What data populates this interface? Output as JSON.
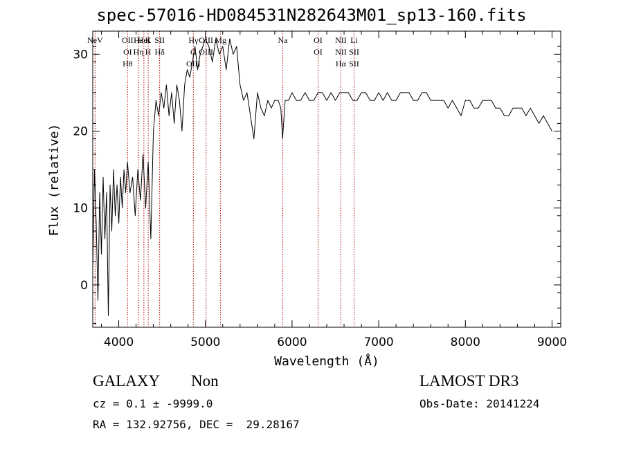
{
  "chart_data": {
    "type": "line",
    "title": "spec-57016-HD084531N282643M01_sp13-160.fits",
    "xlabel": "Wavelength (Å)",
    "ylabel": "Flux (relative)",
    "xlim": [
      3700,
      9100
    ],
    "ylim": [
      -5.5,
      33
    ],
    "xticks": [
      4000,
      5000,
      6000,
      7000,
      8000,
      9000
    ],
    "yticks": [
      0,
      10,
      20,
      30
    ],
    "grid": false,
    "series": [
      {
        "color": "#000000",
        "x": [
          3700,
          3720,
          3740,
          3760,
          3780,
          3800,
          3820,
          3840,
          3860,
          3880,
          3900,
          3920,
          3940,
          3960,
          3980,
          4000,
          4020,
          4040,
          4060,
          4080,
          4100,
          4130,
          4160,
          4190,
          4220,
          4250,
          4280,
          4310,
          4340,
          4370,
          4400,
          4430,
          4460,
          4490,
          4520,
          4550,
          4580,
          4610,
          4640,
          4670,
          4700,
          4730,
          4760,
          4790,
          4820,
          4850,
          4880,
          4910,
          4940,
          4970,
          5000,
          5040,
          5080,
          5120,
          5160,
          5200,
          5240,
          5280,
          5320,
          5360,
          5400,
          5440,
          5480,
          5520,
          5560,
          5600,
          5640,
          5680,
          5720,
          5760,
          5800,
          5840,
          5870,
          5890,
          5920,
          5960,
          6000,
          6050,
          6100,
          6150,
          6200,
          6250,
          6300,
          6350,
          6400,
          6450,
          6500,
          6550,
          6600,
          6650,
          6700,
          6750,
          6800,
          6850,
          6900,
          6950,
          7000,
          7050,
          7100,
          7150,
          7200,
          7250,
          7300,
          7350,
          7400,
          7450,
          7500,
          7550,
          7600,
          7650,
          7700,
          7750,
          7800,
          7850,
          7900,
          7950,
          8000,
          8050,
          8100,
          8150,
          8200,
          8250,
          8300,
          8350,
          8400,
          8450,
          8500,
          8550,
          8600,
          8650,
          8700,
          8750,
          8800,
          8850,
          8900,
          8950,
          9000
        ],
        "y": [
          2,
          15,
          8,
          -2,
          12,
          4,
          14,
          6,
          12,
          -4,
          13,
          7,
          15,
          9,
          13,
          8,
          14,
          10,
          15,
          12,
          16,
          12,
          14,
          9,
          15,
          11,
          17,
          10,
          16,
          6,
          20,
          24,
          22,
          25,
          23,
          26,
          22,
          25,
          21,
          26,
          24,
          20,
          26,
          28,
          27,
          29,
          31,
          28,
          30,
          31,
          32,
          31,
          29,
          32,
          30,
          31,
          28,
          32,
          30,
          31,
          26,
          24,
          25,
          22,
          19,
          25,
          23,
          22,
          24,
          23,
          24,
          24,
          23,
          19,
          24,
          24,
          25,
          24,
          24,
          25,
          24,
          24,
          25,
          25,
          24,
          25,
          24,
          25,
          25,
          25,
          24,
          24,
          25,
          25,
          24,
          24,
          25,
          24,
          25,
          24,
          24,
          25,
          25,
          25,
          24,
          24,
          25,
          25,
          24,
          24,
          24,
          24,
          23,
          24,
          23,
          22,
          24,
          24,
          23,
          23,
          24,
          24,
          24,
          23,
          23,
          22,
          22,
          23,
          23,
          23,
          22,
          23,
          22,
          21,
          22,
          21,
          20
        ]
      }
    ],
    "lines": [
      {
        "wavelength": 3727,
        "labels": [
          "NeV"
        ]
      },
      {
        "wavelength": 4102,
        "labels": [
          "OII",
          "OI",
          "Hθ"
        ]
      },
      {
        "wavelength": 4227,
        "labels": [
          "Hε",
          "Hη"
        ]
      },
      {
        "wavelength": 4290,
        "labels": [
          "HeI"
        ]
      },
      {
        "wavelength": 4340,
        "labels": [
          "K",
          "H"
        ]
      },
      {
        "wavelength": 4472,
        "labels": [
          "SII",
          "Hδ"
        ]
      },
      {
        "wavelength": 4861,
        "labels": [
          "Hγ",
          "G",
          "OIII"
        ]
      },
      {
        "wavelength": 5007,
        "labels": [
          "OIII",
          "OIII"
        ]
      },
      {
        "wavelength": 5175,
        "labels": [
          "Mg"
        ]
      },
      {
        "wavelength": 5893,
        "labels": [
          "Na"
        ]
      },
      {
        "wavelength": 6300,
        "labels": [
          "OI",
          "OI"
        ]
      },
      {
        "wavelength": 6563,
        "labels": [
          "NII",
          "NII",
          "Hα"
        ]
      },
      {
        "wavelength": 6716,
        "labels": [
          "Li",
          "SII",
          "SII"
        ]
      }
    ]
  },
  "info": {
    "galaxy": "GALAXY",
    "non": "Non",
    "lamost": "LAMOST DR3",
    "cz": "cz = 0.1 ± -9999.0",
    "obs_date": "Obs-Date: 20141224",
    "radec": "RA = 132.92756, DEC =  29.28167"
  }
}
